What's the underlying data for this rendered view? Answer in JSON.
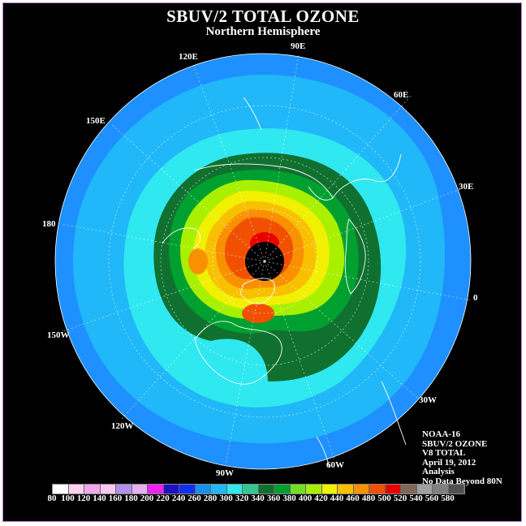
{
  "title": "SBUV/2 TOTAL OZONE",
  "subtitle": "Northern Hemisphere",
  "longitude_labels": {
    "lon_90e": "90E",
    "lon_120e": "120E",
    "lon_60e": "60E",
    "lon_150e": "150E",
    "lon_30e": "30E",
    "lon_180": "180",
    "lon_0": "0",
    "lon_150w": "150W",
    "lon_30w": "30W",
    "lon_120w": "120W",
    "lon_60w": "60W",
    "lon_90w": "90W"
  },
  "info": {
    "line1": "NOAA-16",
    "line2": "SBUV/2 OZONE",
    "line3": "V8 TOTAL",
    "line4": "April 19, 2012",
    "line5": "Analysis",
    "line6": "No Data Beyond 80N"
  },
  "colorbar": {
    "labels": [
      "80",
      "100",
      "120",
      "140",
      "160",
      "180",
      "200",
      "220",
      "240",
      "260",
      "280",
      "300",
      "320",
      "340",
      "360",
      "380",
      "400",
      "420",
      "440",
      "460",
      "480",
      "500",
      "520",
      "540",
      "560",
      "580"
    ],
    "colors": [
      "#ffffff",
      "#ffd0f0",
      "#f0a8e8",
      "#f8c8f0",
      "#b090e8",
      "#e8b0f0",
      "#f020f0",
      "#2010c0",
      "#1030f0",
      "#1890f0",
      "#20b8f8",
      "#30e8f0",
      "#30c890",
      "#107030",
      "#00a030",
      "#70e020",
      "#a8f000",
      "#f0f000",
      "#f8c000",
      "#f89000",
      "#f05000",
      "#e80000",
      "#806858",
      "#a0a0a0",
      "#808080",
      "#505050"
    ]
  },
  "colors": {
    "background": "#000000",
    "ocean_ring": "#1e90ff",
    "ozone_low": "#20b8f8",
    "ozone_mid": "#30e8f0",
    "ozone_high": "#f05000",
    "no_data_pole": "#000000"
  }
}
